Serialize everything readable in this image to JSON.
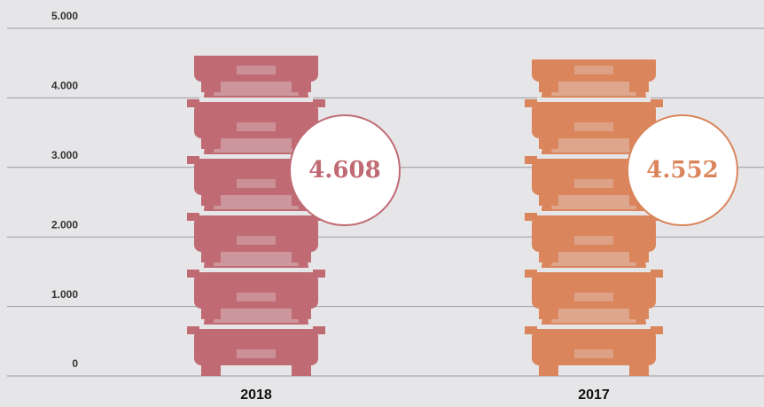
{
  "chart_data": {
    "type": "pictograph",
    "categories": [
      "2018",
      "2017"
    ],
    "values": [
      4608,
      4552
    ],
    "value_labels": [
      "4.608",
      "4.552"
    ],
    "colors": [
      "#c06b73",
      "#da855b"
    ],
    "ylim": [
      0,
      5000
    ],
    "yticks": [
      {
        "value": 0,
        "label": "0"
      },
      {
        "value": 1000,
        "label": "1.000"
      },
      {
        "value": 2000,
        "label": "2.000"
      },
      {
        "value": 3000,
        "label": "3.000"
      },
      {
        "value": 4000,
        "label": "4.000"
      },
      {
        "value": 5000,
        "label": "5.000"
      }
    ],
    "grid": true
  }
}
